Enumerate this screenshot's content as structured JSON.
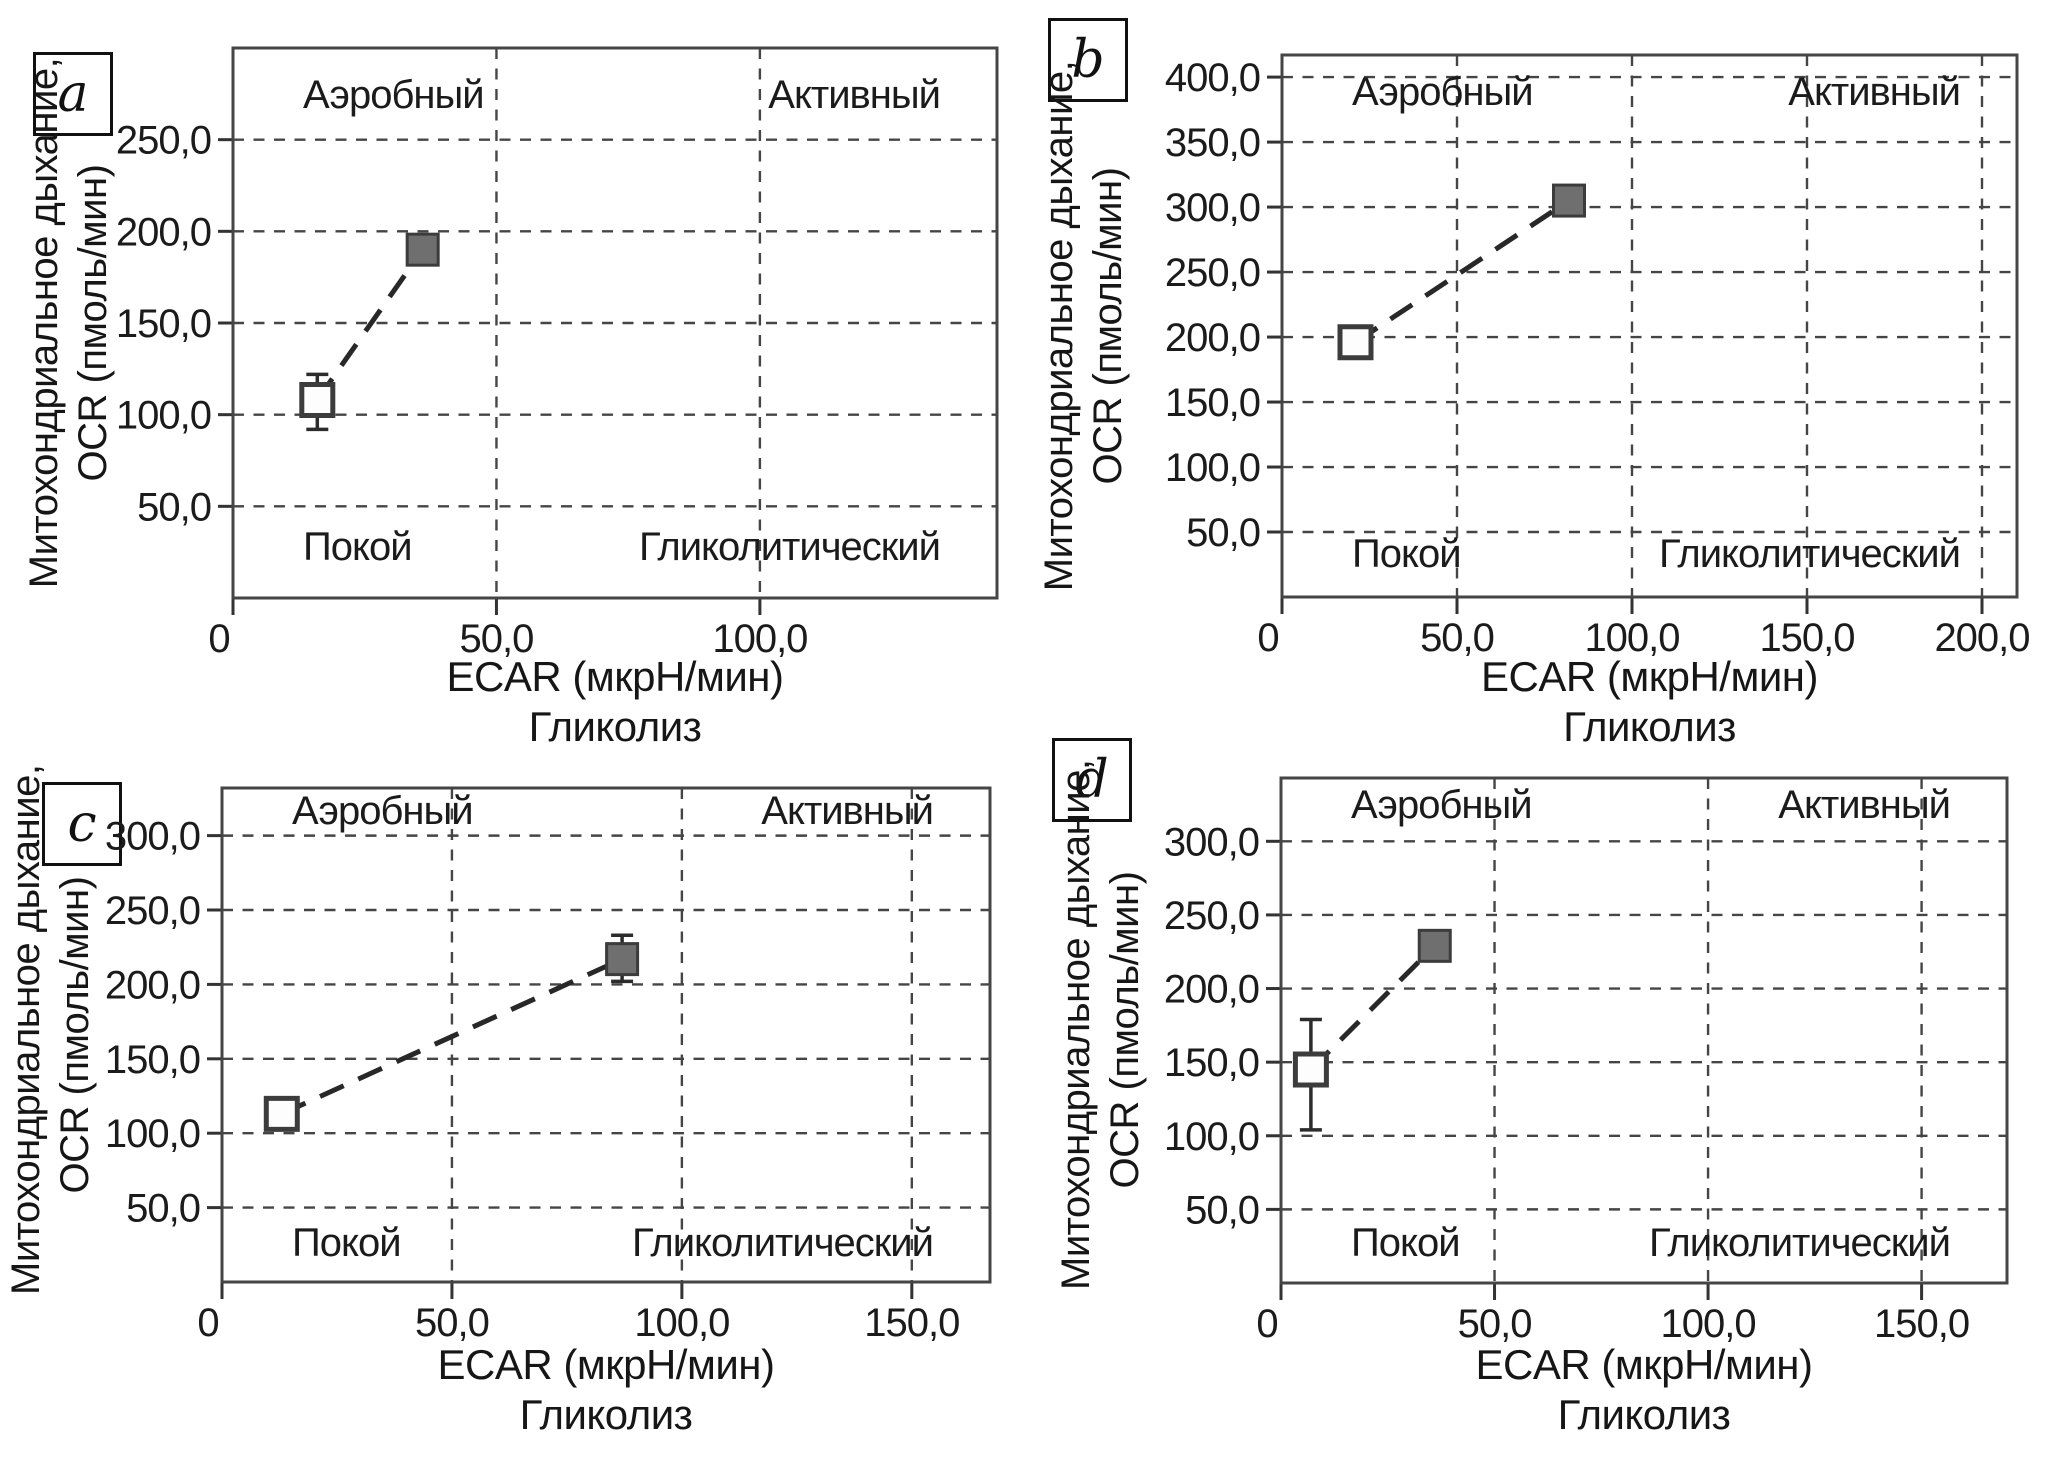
{
  "colors": {
    "text": "#1b1b1b",
    "grid": "#454545",
    "border": "#454545",
    "connector_line": "#282828",
    "open_marker_fill": "#fdfdfd",
    "open_marker_stroke": "#3c3c3c",
    "filled_marker_fill": "#6f6f6f",
    "filled_marker_stroke": "#3c3c3c",
    "error_bar": "#2c2c2c",
    "background": "#ffffff"
  },
  "chart_data": [
    {
      "panel": "a",
      "type": "scatter",
      "title_quadrants": {
        "top_left": "Аэробный",
        "top_right": "Активный",
        "bottom_left": "Покой",
        "bottom_right": "Гликолитический"
      },
      "xlabel": "ECAR (мкрН/мин)",
      "xlabel_sub": "Гликолиз",
      "ylabel": "Митохондриальное дыхание,",
      "ylabel_sub": "OCR (пмоль/мин)",
      "xlim": [
        0,
        145
      ],
      "ylim": [
        0,
        300
      ],
      "grid": "dashed",
      "legend": "none",
      "xticks": [
        {
          "value": 0,
          "label": "0"
        },
        {
          "value": 50,
          "label": "50,0"
        },
        {
          "value": 100,
          "label": "100,0"
        }
      ],
      "yticks": [
        {
          "value": 50,
          "label": "50,0"
        },
        {
          "value": 100,
          "label": "100,0"
        },
        {
          "value": 150,
          "label": "150,0"
        },
        {
          "value": 200,
          "label": "200,0"
        },
        {
          "value": 250,
          "label": "250,0"
        }
      ],
      "points": [
        {
          "marker": "open-square",
          "x": 16,
          "y": 108,
          "yerr_low": 92,
          "yerr_high": 122
        },
        {
          "marker": "filled-square",
          "x": 36,
          "y": 190
        }
      ],
      "connector": "dashed-line"
    },
    {
      "panel": "b",
      "type": "scatter",
      "title_quadrants": {
        "top_left": "Аэробный",
        "top_right": "Активный",
        "bottom_left": "Покой",
        "bottom_right": "Гликолитический"
      },
      "xlabel": "ECAR (мкрН/мин)",
      "xlabel_sub": "Гликолиз",
      "ylabel": "Митохондриальное дыхание,",
      "ylabel_sub": "OCR (пмоль/мин)",
      "xlim": [
        0,
        210
      ],
      "ylim": [
        0,
        417
      ],
      "grid": "dashed",
      "legend": "none",
      "xticks": [
        {
          "value": 0,
          "label": "0"
        },
        {
          "value": 50,
          "label": "50,0"
        },
        {
          "value": 100,
          "label": "100,0"
        },
        {
          "value": 150,
          "label": "150,0"
        },
        {
          "value": 200,
          "label": "200,0"
        }
      ],
      "yticks": [
        {
          "value": 50,
          "label": "50,0"
        },
        {
          "value": 100,
          "label": "100,0"
        },
        {
          "value": 150,
          "label": "150,0"
        },
        {
          "value": 200,
          "label": "200,0"
        },
        {
          "value": 250,
          "label": "250,0"
        },
        {
          "value": 300,
          "label": "300,0"
        },
        {
          "value": 350,
          "label": "350,0"
        },
        {
          "value": 400,
          "label": "400,0"
        }
      ],
      "points": [
        {
          "marker": "open-square",
          "x": 21,
          "y": 196
        },
        {
          "marker": "filled-square",
          "x": 82,
          "y": 305
        }
      ],
      "connector": "dashed-line"
    },
    {
      "panel": "c",
      "type": "scatter",
      "title_quadrants": {
        "top_left": "Аэробный",
        "top_right": "Активный",
        "bottom_left": "Покой",
        "bottom_right": "Гликолитический"
      },
      "xlabel": "ECAR (мкрН/мин)",
      "xlabel_sub": "Гликолиз",
      "ylabel": "Митохондриальное дыхание,",
      "ylabel_sub": "OCR (пмоль/мин)",
      "xlim": [
        0,
        167
      ],
      "ylim": [
        0,
        332
      ],
      "grid": "dashed",
      "legend": "none",
      "xticks": [
        {
          "value": 0,
          "label": "0"
        },
        {
          "value": 50,
          "label": "50,0"
        },
        {
          "value": 100,
          "label": "100,0"
        },
        {
          "value": 150,
          "label": "150,0"
        }
      ],
      "yticks": [
        {
          "value": 50,
          "label": "50,0"
        },
        {
          "value": 100,
          "label": "100,0"
        },
        {
          "value": 150,
          "label": "150,0"
        },
        {
          "value": 200,
          "label": "200,0"
        },
        {
          "value": 250,
          "label": "250,0"
        },
        {
          "value": 300,
          "label": "300,0"
        }
      ],
      "points": [
        {
          "marker": "open-square",
          "x": 13,
          "y": 113
        },
        {
          "marker": "filled-square",
          "x": 87,
          "y": 217,
          "yerr_low": 202,
          "yerr_high": 233
        }
      ],
      "connector": "dashed-line"
    },
    {
      "panel": "d",
      "type": "scatter",
      "title_quadrants": {
        "top_left": "Аэробный",
        "top_right": "Активный",
        "bottom_left": "Покой",
        "bottom_right": "Гликолитический"
      },
      "xlabel": "ECAR (мкрН/мин)",
      "xlabel_sub": "Гликолиз",
      "ylabel": "Митохондриальное дыхание,",
      "ylabel_sub": "OCR (пмоль/мин)",
      "xlim": [
        0,
        170
      ],
      "ylim": [
        0,
        343
      ],
      "grid": "dashed",
      "legend": "none",
      "xticks": [
        {
          "value": 0,
          "label": "0"
        },
        {
          "value": 50,
          "label": "50,0"
        },
        {
          "value": 100,
          "label": "100,0"
        },
        {
          "value": 150,
          "label": "150,0"
        }
      ],
      "yticks": [
        {
          "value": 50,
          "label": "50,0"
        },
        {
          "value": 100,
          "label": "100,0"
        },
        {
          "value": 150,
          "label": "150,0"
        },
        {
          "value": 200,
          "label": "200,0"
        },
        {
          "value": 250,
          "label": "250,0"
        },
        {
          "value": 300,
          "label": "300,0"
        }
      ],
      "points": [
        {
          "marker": "open-square",
          "x": 7,
          "y": 145,
          "yerr_low": 104,
          "yerr_high": 179
        },
        {
          "marker": "filled-square",
          "x": 36,
          "y": 229
        }
      ],
      "connector": "dashed-line"
    }
  ]
}
